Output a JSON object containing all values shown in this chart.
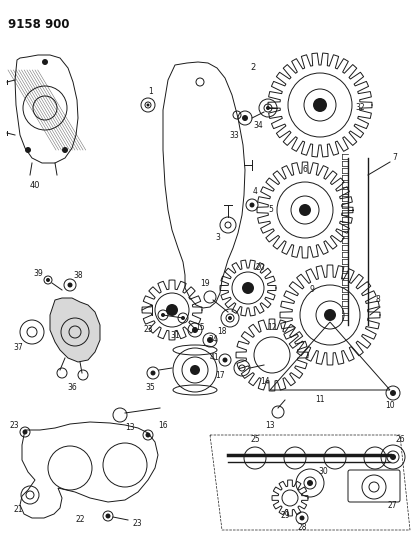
{
  "title": "9158 900",
  "bg": "#ffffff",
  "lc": "#1a1a1a",
  "figsize": [
    4.11,
    5.33
  ],
  "dpi": 100
}
